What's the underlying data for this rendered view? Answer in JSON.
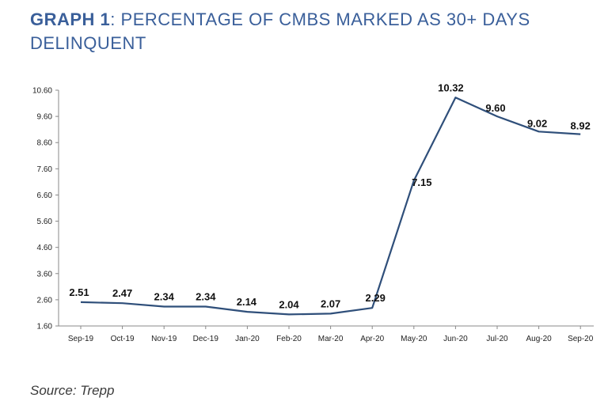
{
  "header": {
    "graph_label": "GRAPH 1",
    "colon": ":",
    "title_line1": " PERCENTAGE OF CMBS MARKED AS 30+ DAYS",
    "title_line2": "DELINQUENT"
  },
  "footer": {
    "source": "Source: Trepp"
  },
  "colors": {
    "title": "#3a5f9a",
    "line": "#2f4f7a"
  },
  "chart_data": {
    "type": "line",
    "title": "",
    "xlabel": "",
    "ylabel": "",
    "categories": [
      "Sep-19",
      "Oct-19",
      "Nov-19",
      "Dec-19",
      "Jan-20",
      "Feb-20",
      "Mar-20",
      "Apr-20",
      "May-20",
      "Jun-20",
      "Jul-20",
      "Aug-20",
      "Sep-20"
    ],
    "series": [
      {
        "values": [
          2.51,
          2.47,
          2.34,
          2.34,
          2.14,
          2.04,
          2.07,
          2.29,
          7.15,
          10.32,
          9.6,
          9.02,
          8.92
        ]
      }
    ],
    "data_labels": [
      "2.51",
      "2.47",
      "2.34",
      "2.34",
      "2.14",
      "2.04",
      "2.07",
      "2.29",
      "7.15",
      "10.32",
      "9.60",
      "9.02",
      "8.92"
    ],
    "ylim": [
      1.6,
      10.6
    ],
    "yticks": [
      "1.60",
      "2.60",
      "3.60",
      "4.60",
      "5.60",
      "6.60",
      "7.60",
      "8.60",
      "9.60",
      "10.60"
    ],
    "grid": false,
    "legend": "none"
  }
}
